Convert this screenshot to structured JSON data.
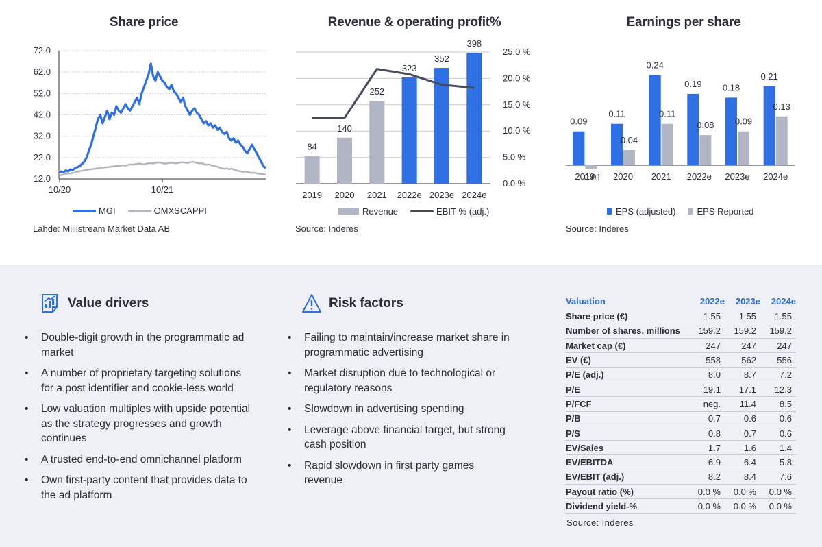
{
  "colors": {
    "blue": "#2f6fe4",
    "grey": "#b2b5c3",
    "dark_line": "#454b5a",
    "omx": "#b4b6bf",
    "accent_text": "#2b6fd6"
  },
  "share_price": {
    "title": "Share price",
    "source": "Lähde: Millistream Market Data AB",
    "chart_data": {
      "type": "line",
      "y_ticks": [
        "72.0",
        "62.0",
        "52.0",
        "42.0",
        "32.0",
        "22.0",
        "12.0"
      ],
      "ylim": [
        12,
        72
      ],
      "x_ticks": [
        "10/20",
        "10/21"
      ],
      "series": [
        {
          "name": "MGI",
          "color": "#2f6fe4",
          "values": [
            15,
            15.5,
            15,
            16,
            15.5,
            16.5,
            16,
            17,
            17.5,
            18,
            19,
            20,
            22,
            25,
            28,
            32,
            36,
            40,
            42,
            38,
            41,
            44,
            40,
            43,
            42,
            46,
            44,
            43,
            45,
            47,
            45,
            44,
            46,
            48,
            50,
            47,
            52,
            55,
            58,
            61,
            66,
            60,
            58,
            62,
            60,
            58,
            57,
            55,
            54,
            56,
            53,
            52,
            50,
            48,
            50,
            46,
            44,
            42,
            44,
            45,
            43,
            42,
            40,
            38,
            39,
            37,
            38,
            36,
            37,
            35,
            36,
            34,
            33,
            34,
            31,
            30,
            31,
            29,
            30,
            28,
            27,
            25,
            24,
            26,
            28,
            26,
            24,
            22,
            20,
            18,
            17
          ]
        },
        {
          "name": "OMXSCAPPI",
          "color": "#b4b6bf",
          "values": [
            13.5,
            13.8,
            14,
            14.2,
            14.5,
            14.6,
            14.8,
            15,
            15.3,
            15.6,
            15.8,
            16,
            16.2,
            16.4,
            16.5,
            16.7,
            16.8,
            17,
            17.2,
            17.3,
            17.4,
            17.5,
            17.6,
            17.8,
            17.9,
            18,
            18.1,
            18.3,
            18.4,
            18.2,
            18.5,
            18.8,
            18.6,
            18.9,
            19,
            19.2,
            19,
            18.8,
            19.1,
            19.3,
            19.4,
            19.2,
            19.5,
            19.7,
            19.6,
            19.4,
            19.2,
            19.3,
            19.5,
            19.6,
            19.4,
            19.3,
            19.5,
            19.7,
            19.8,
            19.6,
            19.4,
            19.8,
            20,
            19.8,
            19.5,
            19.3,
            19.4,
            19,
            18.6,
            18.8,
            18.5,
            18.2,
            18,
            17.7,
            17.2,
            17,
            16.7,
            16.9,
            16.5,
            16.8,
            16.4,
            16,
            15.8,
            15.6,
            15.3,
            15.5,
            15.2,
            15,
            14.8,
            14.9,
            14.6,
            14.4,
            14.3,
            14.2,
            14
          ]
        }
      ]
    }
  },
  "revenue": {
    "title": "Revenue & operating profit%",
    "source": "Source: Inderes",
    "chart_data": {
      "type": "bar",
      "categories": [
        "2019",
        "2020",
        "2021",
        "2022e",
        "2023e",
        "2024e"
      ],
      "series": [
        {
          "name": "Revenue",
          "values": [
            84,
            140,
            252,
            323,
            352,
            398
          ],
          "labels": [
            "84",
            "140",
            "252",
            "323",
            "352",
            "398"
          ],
          "colors": [
            "#b2b5c3",
            "#b2b5c3",
            "#b2b5c3",
            "#2f6fe4",
            "#2f6fe4",
            "#2f6fe4"
          ]
        },
        {
          "name": "EBIT-% (adj.)",
          "values": [
            12.5,
            12.5,
            21.8,
            20.8,
            18.8,
            18.2
          ]
        }
      ],
      "y2_ticks": [
        "25.0 %",
        "20.0 %",
        "15.0 %",
        "10.0 %",
        "5.0 %",
        "0.0 %"
      ],
      "ylim_left": [
        0,
        400
      ],
      "ylim_right": [
        0,
        25
      ]
    }
  },
  "eps": {
    "title": "Earnings per share",
    "source": "Source: Inderes",
    "chart_data": {
      "type": "bar",
      "categories": [
        "2019",
        "2020",
        "2021",
        "2022e",
        "2023e",
        "2024e"
      ],
      "series": [
        {
          "name": "EPS (adjusted)",
          "values": [
            0.09,
            0.11,
            0.24,
            0.19,
            0.18,
            0.21
          ],
          "labels": [
            "0.09",
            "0.11",
            "0.24",
            "0.19",
            "0.18",
            "0.21"
          ]
        },
        {
          "name": "EPS Reported",
          "values": [
            -0.01,
            0.04,
            0.11,
            0.08,
            0.09,
            0.13
          ],
          "labels": [
            "-0.01",
            "0.04",
            "0.11",
            "0.08",
            "0.09",
            "0.13"
          ]
        }
      ],
      "ylim": [
        -0.02,
        0.26
      ]
    }
  },
  "value_drivers": {
    "title": "Value drivers",
    "items": [
      "Double-digit growth in the programmatic ad market",
      "A number of proprietary targeting solutions for a post identifier and cookie-less world",
      "Low valuation multiples with upside potential as the strategy progresses and growth continues",
      "A trusted end-to-end omnichannel platform",
      "Own first-party content that provides data to the ad platform"
    ]
  },
  "risk_factors": {
    "title": "Risk factors",
    "items": [
      "Failing to maintain/increase market share in programmatic advertising",
      "Market disruption due to technological or regulatory reasons",
      "Slowdown in advertising spending",
      "Leverage above financial target, but strong cash position",
      "Rapid slowdown in first party games revenue"
    ]
  },
  "valuation": {
    "header": [
      "Valuation",
      "2022e",
      "2023e",
      "2024e"
    ],
    "rows": [
      [
        "Share price (€)",
        "1.55",
        "1.55",
        "1.55"
      ],
      [
        "Number of shares, millions",
        "159.2",
        "159.2",
        "159.2"
      ],
      [
        "Market cap (€)",
        "247",
        "247",
        "247"
      ],
      [
        "EV (€)",
        "558",
        "562",
        "556"
      ],
      [
        "P/E (adj.)",
        "8.0",
        "8.7",
        "7.2"
      ],
      [
        "P/E",
        "19.1",
        "17.1",
        "12.3"
      ],
      [
        "P/FCF",
        "neg.",
        "11.4",
        "8.5"
      ],
      [
        "P/B",
        "0.7",
        "0.6",
        "0.6"
      ],
      [
        "P/S",
        "0.8",
        "0.7",
        "0.6"
      ],
      [
        "EV/Sales",
        "1.7",
        "1.6",
        "1.4"
      ],
      [
        "EV/EBITDA",
        "6.9",
        "6.4",
        "5.8"
      ],
      [
        "EV/EBIT (adj.)",
        "8.2",
        "8.4",
        "7.6"
      ],
      [
        "Payout ratio (%)",
        "0.0 %",
        "0.0 %",
        "0.0 %"
      ],
      [
        "Dividend yield-%",
        "0.0 %",
        "0.0 %",
        "0.0 %"
      ]
    ],
    "source": "Source: Inderes"
  }
}
